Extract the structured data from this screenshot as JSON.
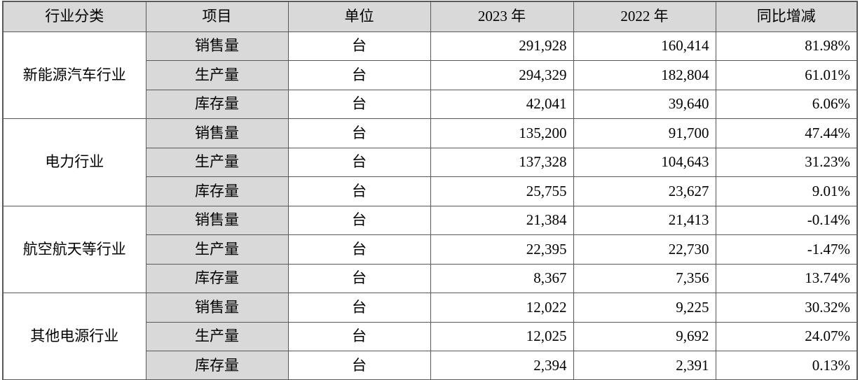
{
  "colors": {
    "header_bg": "#d9d9d9",
    "item_col_bg": "#d9d9d9",
    "border_color": "#595959",
    "text_color": "#000000"
  },
  "table": {
    "headers": [
      "行业分类",
      "项目",
      "单位",
      "2023 年",
      "2022 年",
      "同比增减"
    ],
    "groups": [
      {
        "industry": "新能源汽车行业",
        "rows": [
          {
            "item": "销售量",
            "unit": "台",
            "y2023": "291,928",
            "y2022": "160,414",
            "yoy": "81.98%"
          },
          {
            "item": "生产量",
            "unit": "台",
            "y2023": "294,329",
            "y2022": "182,804",
            "yoy": "61.01%"
          },
          {
            "item": "库存量",
            "unit": "台",
            "y2023": "42,041",
            "y2022": "39,640",
            "yoy": "6.06%"
          }
        ]
      },
      {
        "industry": "电力行业",
        "rows": [
          {
            "item": "销售量",
            "unit": "台",
            "y2023": "135,200",
            "y2022": "91,700",
            "yoy": "47.44%"
          },
          {
            "item": "生产量",
            "unit": "台",
            "y2023": "137,328",
            "y2022": "104,643",
            "yoy": "31.23%"
          },
          {
            "item": "库存量",
            "unit": "台",
            "y2023": "25,755",
            "y2022": "23,627",
            "yoy": "9.01%"
          }
        ]
      },
      {
        "industry": "航空航天等行业",
        "rows": [
          {
            "item": "销售量",
            "unit": "台",
            "y2023": "21,384",
            "y2022": "21,413",
            "yoy": "-0.14%"
          },
          {
            "item": "生产量",
            "unit": "台",
            "y2023": "22,395",
            "y2022": "22,730",
            "yoy": "-1.47%"
          },
          {
            "item": "库存量",
            "unit": "台",
            "y2023": "8,367",
            "y2022": "7,356",
            "yoy": "13.74%"
          }
        ]
      },
      {
        "industry": "其他电源行业",
        "rows": [
          {
            "item": "销售量",
            "unit": "台",
            "y2023": "12,022",
            "y2022": "9,225",
            "yoy": "30.32%"
          },
          {
            "item": "生产量",
            "unit": "台",
            "y2023": "12,025",
            "y2022": "9,692",
            "yoy": "24.07%"
          },
          {
            "item": "库存量",
            "unit": "台",
            "y2023": "2,394",
            "y2022": "2,391",
            "yoy": "0.13%"
          }
        ]
      }
    ]
  }
}
